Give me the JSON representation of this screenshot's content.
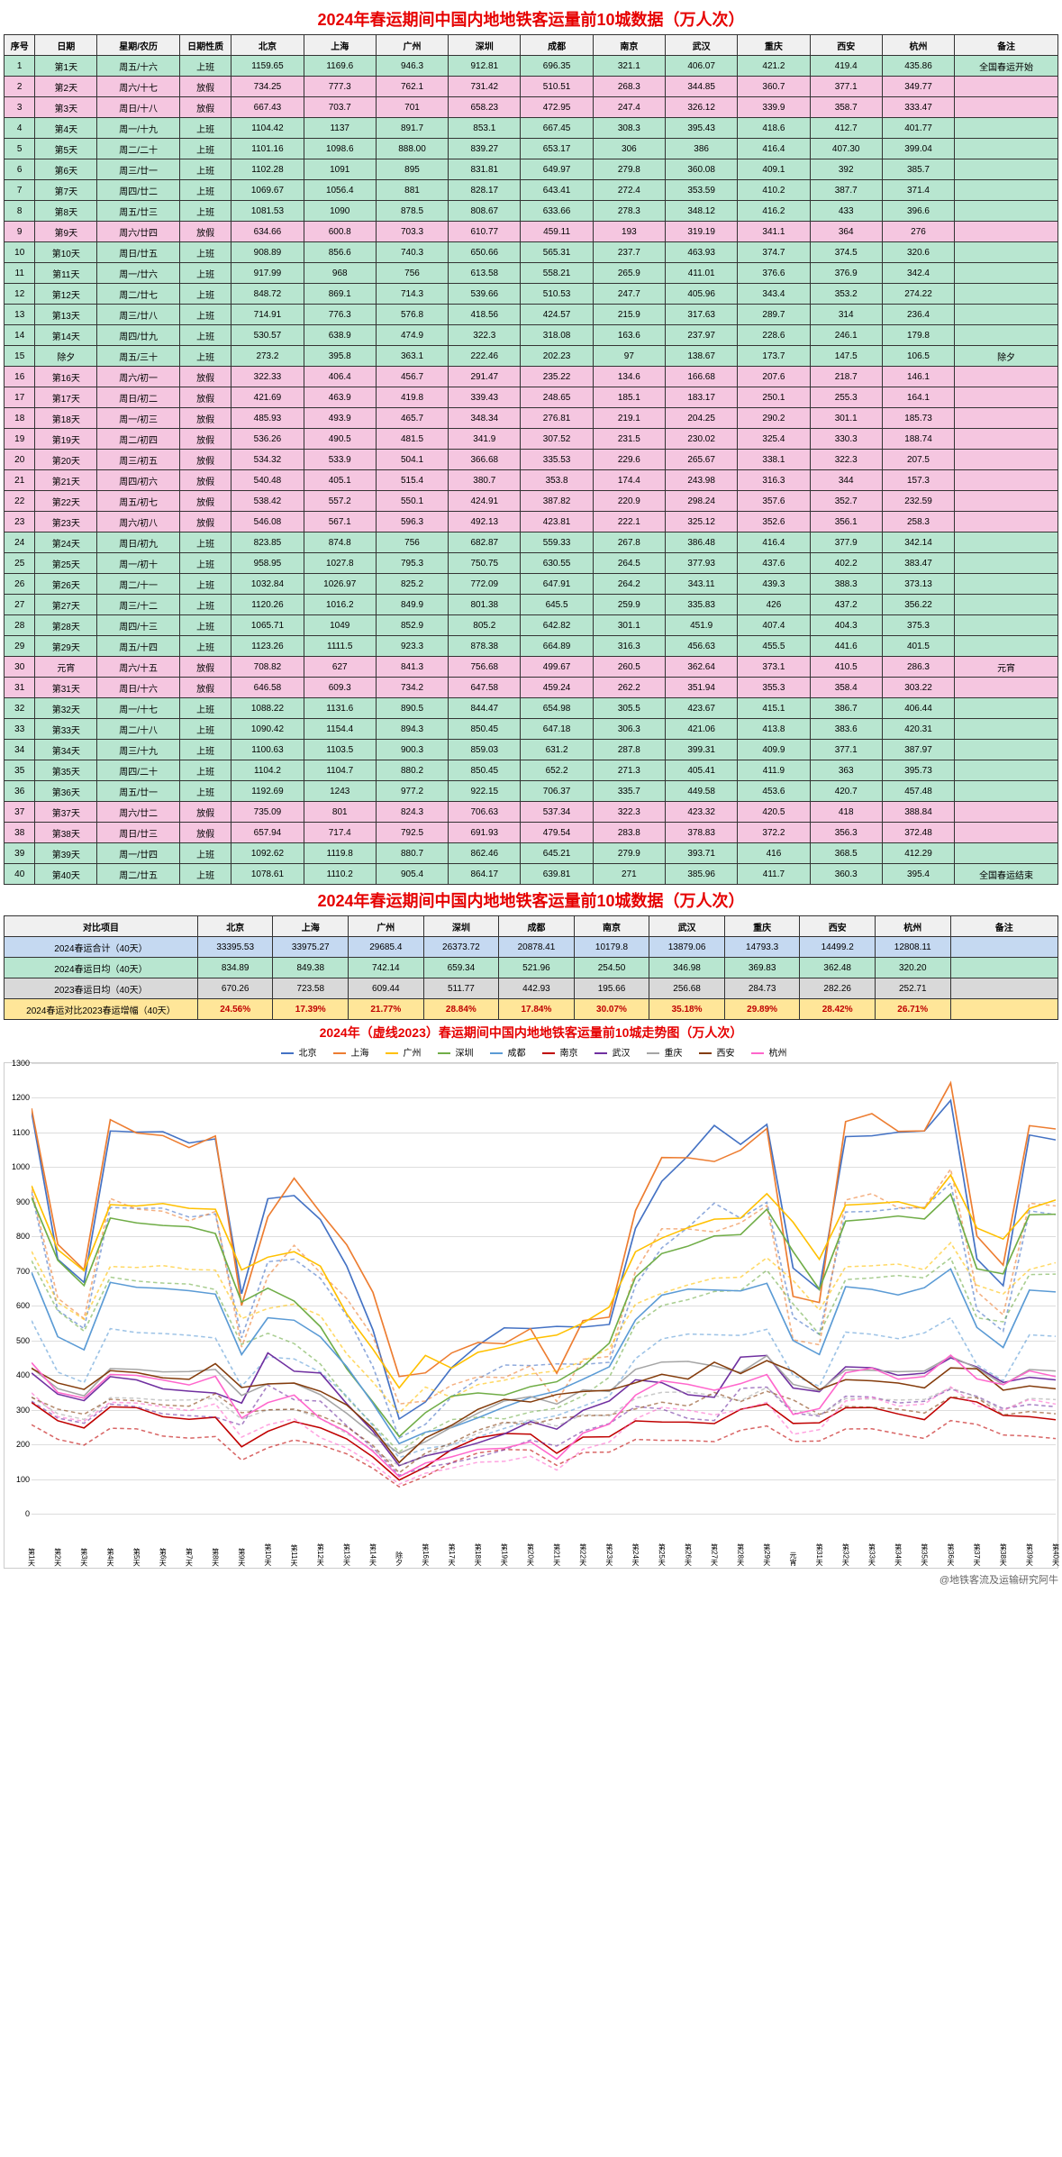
{
  "title": "2024年春运期间中国内地地铁客运量前10城数据（万人次）",
  "chart_title": "2024年（虚线2023）春运期间中国内地地铁客运量前10城走势图（万人次）",
  "footer": "@地铁客流及运输研究阿牛",
  "headers": [
    "序号",
    "日期",
    "星期/农历",
    "日期性质",
    "北京",
    "上海",
    "广州",
    "深圳",
    "成都",
    "南京",
    "武汉",
    "重庆",
    "西安",
    "杭州",
    "备注"
  ],
  "rows": [
    {
      "n": 1,
      "d": "第1天",
      "w": "周五/十六",
      "t": "上班",
      "v": [
        "1159.65",
        "1169.6",
        "946.3",
        "912.81",
        "696.35",
        "321.1",
        "406.07",
        "421.2",
        "419.4",
        "435.86"
      ],
      "note": "全国春运开始",
      "cls": "work"
    },
    {
      "n": 2,
      "d": "第2天",
      "w": "周六/十七",
      "t": "放假",
      "v": [
        "734.25",
        "777.3",
        "762.1",
        "731.42",
        "510.51",
        "268.3",
        "344.85",
        "360.7",
        "377.1",
        "349.77"
      ],
      "note": "",
      "cls": "holiday"
    },
    {
      "n": 3,
      "d": "第3天",
      "w": "周日/十八",
      "t": "放假",
      "v": [
        "667.43",
        "703.7",
        "701",
        "658.23",
        "472.95",
        "247.4",
        "326.12",
        "339.9",
        "358.7",
        "333.47"
      ],
      "note": "",
      "cls": "holiday"
    },
    {
      "n": 4,
      "d": "第4天",
      "w": "周一/十九",
      "t": "上班",
      "v": [
        "1104.42",
        "1137",
        "891.7",
        "853.1",
        "667.45",
        "308.3",
        "395.43",
        "418.6",
        "412.7",
        "401.77"
      ],
      "note": "",
      "cls": "work"
    },
    {
      "n": 5,
      "d": "第5天",
      "w": "周二/二十",
      "t": "上班",
      "v": [
        "1101.16",
        "1098.6",
        "888.00",
        "839.27",
        "653.17",
        "306",
        "386",
        "416.4",
        "407.30",
        "399.04"
      ],
      "note": "",
      "cls": "work"
    },
    {
      "n": 6,
      "d": "第6天",
      "w": "周三/廿一",
      "t": "上班",
      "v": [
        "1102.28",
        "1091",
        "895",
        "831.81",
        "649.97",
        "279.8",
        "360.08",
        "409.1",
        "392",
        "385.7"
      ],
      "note": "",
      "cls": "work"
    },
    {
      "n": 7,
      "d": "第7天",
      "w": "周四/廿二",
      "t": "上班",
      "v": [
        "1069.67",
        "1056.4",
        "881",
        "828.17",
        "643.41",
        "272.4",
        "353.59",
        "410.2",
        "387.7",
        "371.4"
      ],
      "note": "",
      "cls": "work"
    },
    {
      "n": 8,
      "d": "第8天",
      "w": "周五/廿三",
      "t": "上班",
      "v": [
        "1081.53",
        "1090",
        "878.5",
        "808.67",
        "633.66",
        "278.3",
        "348.12",
        "416.2",
        "433",
        "396.6"
      ],
      "note": "",
      "cls": "work"
    },
    {
      "n": 9,
      "d": "第9天",
      "w": "周六/廿四",
      "t": "放假",
      "v": [
        "634.66",
        "600.8",
        "703.3",
        "610.77",
        "459.11",
        "193",
        "319.19",
        "341.1",
        "364",
        "276"
      ],
      "note": "",
      "cls": "holiday"
    },
    {
      "n": 10,
      "d": "第10天",
      "w": "周日/廿五",
      "t": "上班",
      "v": [
        "908.89",
        "856.6",
        "740.3",
        "650.66",
        "565.31",
        "237.7",
        "463.93",
        "374.7",
        "374.5",
        "320.6"
      ],
      "note": "",
      "cls": "work"
    },
    {
      "n": 11,
      "d": "第11天",
      "w": "周一/廿六",
      "t": "上班",
      "v": [
        "917.99",
        "968",
        "756",
        "613.58",
        "558.21",
        "265.9",
        "411.01",
        "376.6",
        "376.9",
        "342.4"
      ],
      "note": "",
      "cls": "work"
    },
    {
      "n": 12,
      "d": "第12天",
      "w": "周二/廿七",
      "t": "上班",
      "v": [
        "848.72",
        "869.1",
        "714.3",
        "539.66",
        "510.53",
        "247.7",
        "405.96",
        "343.4",
        "353.2",
        "274.22"
      ],
      "note": "",
      "cls": "work"
    },
    {
      "n": 13,
      "d": "第13天",
      "w": "周三/廿八",
      "t": "上班",
      "v": [
        "714.91",
        "776.3",
        "576.8",
        "418.56",
        "424.57",
        "215.9",
        "317.63",
        "289.7",
        "314",
        "236.4"
      ],
      "note": "",
      "cls": "work"
    },
    {
      "n": 14,
      "d": "第14天",
      "w": "周四/廿九",
      "t": "上班",
      "v": [
        "530.57",
        "638.9",
        "474.9",
        "322.3",
        "318.08",
        "163.6",
        "237.97",
        "228.6",
        "246.1",
        "179.8"
      ],
      "note": "",
      "cls": "work"
    },
    {
      "n": 15,
      "d": "除夕",
      "w": "周五/三十",
      "t": "上班",
      "v": [
        "273.2",
        "395.8",
        "363.1",
        "222.46",
        "202.23",
        "97",
        "138.67",
        "173.7",
        "147.5",
        "106.5"
      ],
      "note": "除夕",
      "cls": "work"
    },
    {
      "n": 16,
      "d": "第16天",
      "w": "周六/初一",
      "t": "放假",
      "v": [
        "322.33",
        "406.4",
        "456.7",
        "291.47",
        "235.22",
        "134.6",
        "166.68",
        "207.6",
        "218.7",
        "146.1"
      ],
      "note": "",
      "cls": "holiday"
    },
    {
      "n": 17,
      "d": "第17天",
      "w": "周日/初二",
      "t": "放假",
      "v": [
        "421.69",
        "463.9",
        "419.8",
        "339.43",
        "248.65",
        "185.1",
        "183.17",
        "250.1",
        "255.3",
        "164.1"
      ],
      "note": "",
      "cls": "holiday"
    },
    {
      "n": 18,
      "d": "第18天",
      "w": "周一/初三",
      "t": "放假",
      "v": [
        "485.93",
        "493.9",
        "465.7",
        "348.34",
        "276.81",
        "219.1",
        "204.25",
        "290.2",
        "301.1",
        "185.73"
      ],
      "note": "",
      "cls": "holiday"
    },
    {
      "n": 19,
      "d": "第19天",
      "w": "周二/初四",
      "t": "放假",
      "v": [
        "536.26",
        "490.5",
        "481.5",
        "341.9",
        "307.52",
        "231.5",
        "230.02",
        "325.4",
        "330.3",
        "188.74"
      ],
      "note": "",
      "cls": "holiday"
    },
    {
      "n": 20,
      "d": "第20天",
      "w": "周三/初五",
      "t": "放假",
      "v": [
        "534.32",
        "533.9",
        "504.1",
        "366.68",
        "335.53",
        "229.6",
        "265.67",
        "338.1",
        "322.3",
        "207.5"
      ],
      "note": "",
      "cls": "holiday"
    },
    {
      "n": 21,
      "d": "第21天",
      "w": "周四/初六",
      "t": "放假",
      "v": [
        "540.48",
        "405.1",
        "515.4",
        "380.7",
        "353.8",
        "174.4",
        "243.98",
        "316.3",
        "344",
        "157.3"
      ],
      "note": "",
      "cls": "holiday"
    },
    {
      "n": 22,
      "d": "第22天",
      "w": "周五/初七",
      "t": "放假",
      "v": [
        "538.42",
        "557.2",
        "550.1",
        "424.91",
        "387.82",
        "220.9",
        "298.24",
        "357.6",
        "352.7",
        "232.59"
      ],
      "note": "",
      "cls": "holiday"
    },
    {
      "n": 23,
      "d": "第23天",
      "w": "周六/初八",
      "t": "放假",
      "v": [
        "546.08",
        "567.1",
        "596.3",
        "492.13",
        "423.81",
        "222.1",
        "325.12",
        "352.6",
        "356.1",
        "258.3"
      ],
      "note": "",
      "cls": "holiday"
    },
    {
      "n": 24,
      "d": "第24天",
      "w": "周日/初九",
      "t": "上班",
      "v": [
        "823.85",
        "874.8",
        "756",
        "682.87",
        "559.33",
        "267.8",
        "386.48",
        "416.4",
        "377.9",
        "342.14"
      ],
      "note": "",
      "cls": "work"
    },
    {
      "n": 25,
      "d": "第25天",
      "w": "周一/初十",
      "t": "上班",
      "v": [
        "958.95",
        "1027.8",
        "795.3",
        "750.75",
        "630.55",
        "264.5",
        "377.93",
        "437.6",
        "402.2",
        "383.47"
      ],
      "note": "",
      "cls": "work"
    },
    {
      "n": 26,
      "d": "第26天",
      "w": "周二/十一",
      "t": "上班",
      "v": [
        "1032.84",
        "1026.97",
        "825.2",
        "772.09",
        "647.91",
        "264.2",
        "343.11",
        "439.3",
        "388.3",
        "373.13"
      ],
      "note": "",
      "cls": "work"
    },
    {
      "n": 27,
      "d": "第27天",
      "w": "周三/十二",
      "t": "上班",
      "v": [
        "1120.26",
        "1016.2",
        "849.9",
        "801.38",
        "645.5",
        "259.9",
        "335.83",
        "426",
        "437.2",
        "356.22"
      ],
      "note": "",
      "cls": "work"
    },
    {
      "n": 28,
      "d": "第28天",
      "w": "周四/十三",
      "t": "上班",
      "v": [
        "1065.71",
        "1049",
        "852.9",
        "805.2",
        "642.82",
        "301.1",
        "451.9",
        "407.4",
        "404.3",
        "375.3"
      ],
      "note": "",
      "cls": "work"
    },
    {
      "n": 29,
      "d": "第29天",
      "w": "周五/十四",
      "t": "上班",
      "v": [
        "1123.26",
        "1111.5",
        "923.3",
        "878.38",
        "664.89",
        "316.3",
        "456.63",
        "455.5",
        "441.6",
        "401.5"
      ],
      "note": "",
      "cls": "work"
    },
    {
      "n": 30,
      "d": "元宵",
      "w": "周六/十五",
      "t": "放假",
      "v": [
        "708.82",
        "627",
        "841.3",
        "756.68",
        "499.67",
        "260.5",
        "362.64",
        "373.1",
        "410.5",
        "286.3"
      ],
      "note": "元宵",
      "cls": "holiday"
    },
    {
      "n": 31,
      "d": "第31天",
      "w": "周日/十六",
      "t": "放假",
      "v": [
        "646.58",
        "609.3",
        "734.2",
        "647.58",
        "459.24",
        "262.2",
        "351.94",
        "355.3",
        "358.4",
        "303.22"
      ],
      "note": "",
      "cls": "holiday"
    },
    {
      "n": 32,
      "d": "第32天",
      "w": "周一/十七",
      "t": "上班",
      "v": [
        "1088.22",
        "1131.6",
        "890.5",
        "844.47",
        "654.98",
        "305.5",
        "423.67",
        "415.1",
        "386.7",
        "406.44"
      ],
      "note": "",
      "cls": "work"
    },
    {
      "n": 33,
      "d": "第33天",
      "w": "周二/十八",
      "t": "上班",
      "v": [
        "1090.42",
        "1154.4",
        "894.3",
        "850.45",
        "647.18",
        "306.3",
        "421.06",
        "413.8",
        "383.6",
        "420.31"
      ],
      "note": "",
      "cls": "work"
    },
    {
      "n": 34,
      "d": "第34天",
      "w": "周三/十九",
      "t": "上班",
      "v": [
        "1100.63",
        "1103.5",
        "900.3",
        "859.03",
        "631.2",
        "287.8",
        "399.31",
        "409.9",
        "377.1",
        "387.97"
      ],
      "note": "",
      "cls": "work"
    },
    {
      "n": 35,
      "d": "第35天",
      "w": "周四/二十",
      "t": "上班",
      "v": [
        "1104.2",
        "1104.7",
        "880.2",
        "850.45",
        "652.2",
        "271.3",
        "405.41",
        "411.9",
        "363",
        "395.73"
      ],
      "note": "",
      "cls": "work"
    },
    {
      "n": 36,
      "d": "第36天",
      "w": "周五/廿一",
      "t": "上班",
      "v": [
        "1192.69",
        "1243",
        "977.2",
        "922.15",
        "706.37",
        "335.7",
        "449.58",
        "453.6",
        "420.7",
        "457.48"
      ],
      "note": "",
      "cls": "work"
    },
    {
      "n": 37,
      "d": "第37天",
      "w": "周六/廿二",
      "t": "放假",
      "v": [
        "735.09",
        "801",
        "824.3",
        "706.63",
        "537.34",
        "322.3",
        "423.32",
        "420.5",
        "418",
        "388.84"
      ],
      "note": "",
      "cls": "holiday"
    },
    {
      "n": 38,
      "d": "第38天",
      "w": "周日/廿三",
      "t": "放假",
      "v": [
        "657.94",
        "717.4",
        "792.5",
        "691.93",
        "479.54",
        "283.8",
        "378.83",
        "372.2",
        "356.3",
        "372.48"
      ],
      "note": "",
      "cls": "holiday"
    },
    {
      "n": 39,
      "d": "第39天",
      "w": "周一/廿四",
      "t": "上班",
      "v": [
        "1092.62",
        "1119.8",
        "880.7",
        "862.46",
        "645.21",
        "279.9",
        "393.71",
        "416",
        "368.5",
        "412.29"
      ],
      "note": "",
      "cls": "work"
    },
    {
      "n": 40,
      "d": "第40天",
      "w": "周二/廿五",
      "t": "上班",
      "v": [
        "1078.61",
        "1110.2",
        "905.4",
        "864.17",
        "639.81",
        "271",
        "385.96",
        "411.7",
        "360.3",
        "395.4"
      ],
      "note": "全国春运结束",
      "cls": "work"
    }
  ],
  "summary_header": "对比项目",
  "summary": [
    {
      "label": "2024春运合计（40天）",
      "v": [
        "33395.53",
        "33975.27",
        "29685.4",
        "26373.72",
        "20878.41",
        "10179.8",
        "13879.06",
        "14793.3",
        "14499.2",
        "12808.11"
      ],
      "cls": "blue"
    },
    {
      "label": "2024春运日均（40天）",
      "v": [
        "834.89",
        "849.38",
        "742.14",
        "659.34",
        "521.96",
        "254.50",
        "346.98",
        "369.83",
        "362.48",
        "320.20"
      ],
      "cls": "green"
    },
    {
      "label": "2023春运日均（40天）",
      "v": [
        "670.26",
        "723.58",
        "609.44",
        "511.77",
        "442.93",
        "195.66",
        "256.68",
        "284.73",
        "282.26",
        "252.71"
      ],
      "cls": "gray"
    },
    {
      "label": "2024春运对比2023春运增幅（40天）",
      "v": [
        "24.56%",
        "17.39%",
        "21.77%",
        "28.84%",
        "17.84%",
        "30.07%",
        "35.18%",
        "29.89%",
        "28.42%",
        "26.71%"
      ],
      "cls": "yellow",
      "redtext": true
    }
  ],
  "chart": {
    "y_min": 0,
    "y_max": 1300,
    "y_step": 100,
    "grid_color": "#dddddd",
    "colors": {
      "北京": "#4472c4",
      "上海": "#ed7d31",
      "广州": "#ffc000",
      "深圳": "#70ad47",
      "成都": "#5b9bd5",
      "南京": "#c00000",
      "武汉": "#7030a0",
      "重庆": "#a5a5a5",
      "西安": "#843c0c",
      "杭州": "#ff66cc"
    },
    "cities": [
      "北京",
      "上海",
      "广州",
      "深圳",
      "成都",
      "南京",
      "武汉",
      "重庆",
      "西安",
      "杭州"
    ]
  }
}
